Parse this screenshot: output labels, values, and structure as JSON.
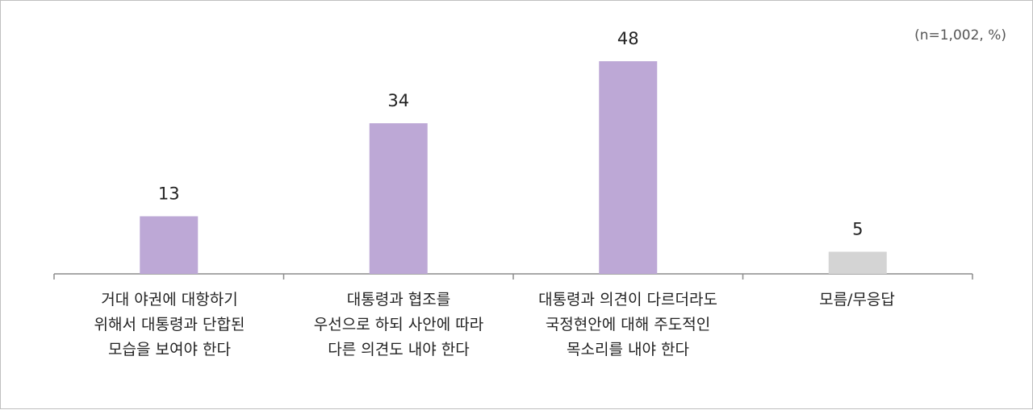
{
  "chart_data": {
    "type": "bar",
    "note": "(n=1,002, %)",
    "categories": [
      "거대 야권에 대항하기\n위해서 대통령과 단합된\n모습을 보여야 한다",
      "대통령과 협조를\n우선으로 하되 사안에 따라\n다른 의견도 내야 한다",
      "대통령과 의견이 다르더라도\n국정현안에 대해 주도적인\n목소리를 내야 한다",
      "모름/무응답"
    ],
    "values": [
      13,
      34,
      48,
      5
    ],
    "data_labels": [
      "13",
      "34",
      "48",
      "5"
    ],
    "colors": [
      "#bda8d6",
      "#bda8d6",
      "#bda8d6",
      "#d4d4d4"
    ],
    "ylim": [
      0,
      50
    ],
    "grid": false,
    "legend": "none"
  }
}
